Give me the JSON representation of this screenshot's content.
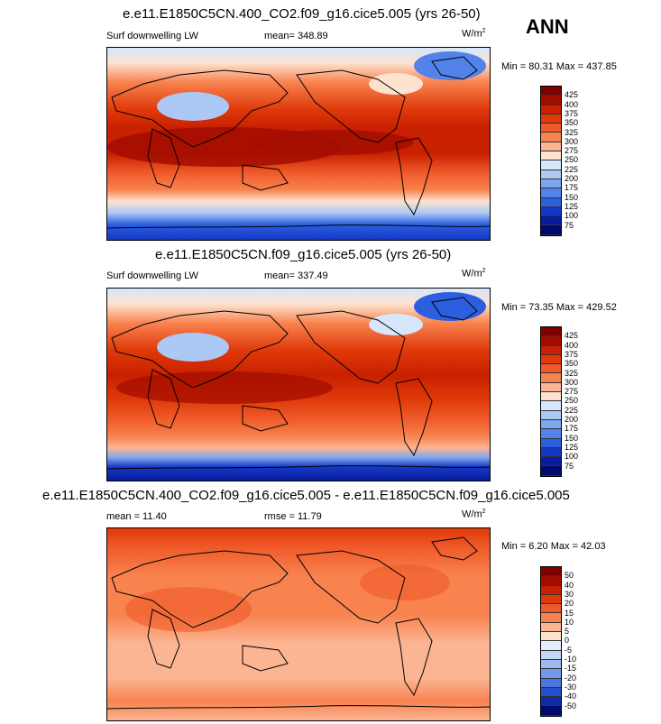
{
  "season": "ANN",
  "units_base": "W/m",
  "units_exp": "2",
  "panels": [
    {
      "title": "e.e11.E1850C5CN.400_CO2.f09_g16.cice5.005 (yrs 26-50)",
      "left_label": "Surf downwelling LW",
      "center_label": "mean= 348.89",
      "minmax": "Min =  80.31 Max = 437.85",
      "levels": [
        "425",
        "400",
        "375",
        "350",
        "325",
        "300",
        "275",
        "250",
        "225",
        "200",
        "175",
        "150",
        "125",
        "100",
        "75"
      ],
      "colors": [
        "#800000",
        "#a30d00",
        "#c82000",
        "#e03a0a",
        "#f05a2a",
        "#f8834f",
        "#fcb593",
        "#fde3cf",
        "#d6e6fb",
        "#acc9f5",
        "#7ea7ef",
        "#5383ea",
        "#2c5fe0",
        "#1438c6",
        "#0a1c9c",
        "#000a6e"
      ]
    },
    {
      "title": "e.e11.E1850C5CN.f09_g16.cice5.005 (yrs 26-50)",
      "left_label": "Surf downwelling LW",
      "center_label": "mean= 337.49",
      "minmax": "Min =  73.35 Max = 429.52",
      "levels": [
        "425",
        "400",
        "375",
        "350",
        "325",
        "300",
        "275",
        "250",
        "225",
        "200",
        "175",
        "150",
        "125",
        "100",
        "75"
      ],
      "colors": [
        "#800000",
        "#a30d00",
        "#c82000",
        "#e03a0a",
        "#f05a2a",
        "#f8834f",
        "#fcb593",
        "#fde3cf",
        "#d6e6fb",
        "#acc9f5",
        "#7ea7ef",
        "#5383ea",
        "#2c5fe0",
        "#1438c6",
        "#0a1c9c",
        "#000a6e"
      ]
    },
    {
      "title": "e.e11.E1850C5CN.400_CO2.f09_g16.cice5.005 - e.e11.E1850C5CN.f09_g16.cice5.005",
      "left_label": "mean =  11.40",
      "center_label": "rmse =  11.79",
      "minmax": "Min =   6.20 Max =  42.03",
      "levels": [
        "50",
        "40",
        "30",
        "20",
        "15",
        "10",
        "5",
        "0",
        "-5",
        "-10",
        "-15",
        "-20",
        "-30",
        "-40",
        "-50"
      ],
      "colors": [
        "#800000",
        "#a30d00",
        "#c82000",
        "#e03a0a",
        "#f05a2a",
        "#f8834f",
        "#fcb593",
        "#fde3cf",
        "#e3edfb",
        "#c2d6f7",
        "#9dbbf2",
        "#7399ec",
        "#4a76e4",
        "#244fd0",
        "#0f2aa8",
        "#000a6e"
      ]
    }
  ]
}
